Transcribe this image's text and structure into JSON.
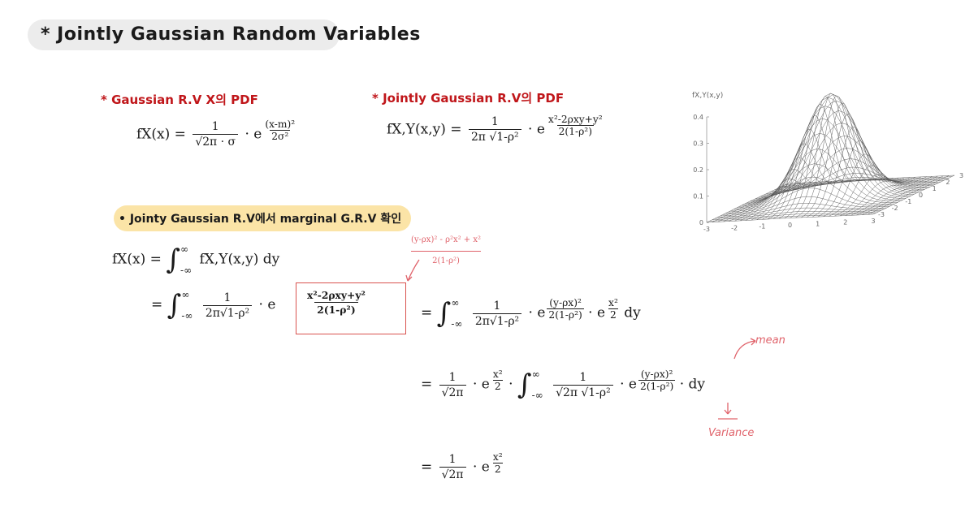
{
  "title": "* Jointly Gaussian Random Variables",
  "section1": {
    "heading": "* Gaussian R.V X의 PDF",
    "lhs": "fX(x) =",
    "num": "1",
    "den": "√2π · σ",
    "dot_e": "· e",
    "exp_num": "(x-m)²",
    "exp_den": "2σ²"
  },
  "section2": {
    "heading": "* Jointly Gaussian R.V의 PDF",
    "lhs": "fX,Y(x,y) =",
    "num": "1",
    "den": "2π √1-ρ²",
    "dot_e": "· e",
    "exp_num": "x²-2ρxy+y²",
    "exp_den": "2(1-ρ²)"
  },
  "bullet": {
    "text": "• Jointy Gaussian R.V에서 marginal G.R.V 확인"
  },
  "derivation": {
    "line1": {
      "lhs": "fX(x) =",
      "integrand": "fX,Y(x,y) dy",
      "upper": "∞",
      "lower": "-∞"
    },
    "annotation": {
      "num": "(y-ρx)² - ρ²x² + x²",
      "den": "2(1-ρ²)"
    },
    "line2": {
      "eq": "=",
      "num": "1",
      "den": "2π√1-ρ²",
      "dot_e": "· e",
      "exp_num": "x²-2ρxy+y²",
      "exp_den": "2(1-ρ²)"
    },
    "line3": {
      "eq": "=",
      "num": "1",
      "den": "2π√1-ρ²",
      "dot_e": "· e",
      "exp1_num": "(y-ρx)²",
      "exp1_den": "2(1-ρ²)",
      "dot_e2": "· e",
      "exp2_num": "x²",
      "exp2_den": "2",
      "tail": "dy"
    },
    "line4": {
      "eq": "=",
      "num": "1",
      "den": "√2π",
      "dot_e": "· e",
      "exp1_num": "x²",
      "exp1_den": "2",
      "num2": "1",
      "den2": "√2π √1-ρ²",
      "dot_e2": "· e",
      "exp2_num": "(y-ρx)²",
      "exp2_den": "2(1-ρ²)",
      "tail": "· dy"
    },
    "line5": {
      "eq": "=",
      "num": "1",
      "den": "√2π",
      "dot_e": "· e",
      "exp_num": "x²",
      "exp_den": "2"
    },
    "mean_label": "mean",
    "variance_label": "Variance"
  },
  "chart_data": {
    "type": "surface",
    "title": "fX,Y(x,y)",
    "z_ticks": [
      "0.4",
      "0.3",
      "0.2",
      "0.1",
      "0"
    ],
    "x_ticks": [
      "-3",
      "-2",
      "-1",
      "0",
      "1",
      "2",
      "3"
    ],
    "y_ticks": [
      "3",
      "2",
      "1",
      "0",
      "-1",
      "-2",
      "-3"
    ],
    "zlim": [
      0,
      0.4
    ],
    "xlim": [
      -3,
      3
    ],
    "ylim": [
      -3,
      3
    ],
    "grid": true
  }
}
